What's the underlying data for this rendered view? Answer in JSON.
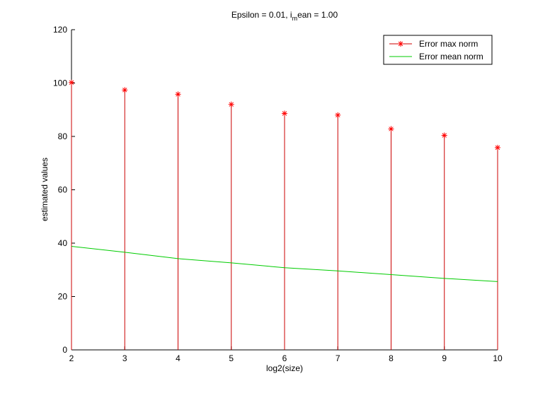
{
  "chart_data": {
    "type": "line",
    "title_parts": [
      "Epsilon = 0.01, i",
      "m",
      "ean = 1.00"
    ],
    "xlabel": "log2(size)",
    "ylabel": "estimated values",
    "xlim": [
      2,
      10
    ],
    "ylim": [
      0,
      120
    ],
    "xticks": [
      2,
      3,
      4,
      5,
      6,
      7,
      8,
      9,
      10
    ],
    "yticks": [
      0,
      20,
      40,
      60,
      80,
      100,
      120
    ],
    "x": [
      2,
      3,
      4,
      5,
      6,
      7,
      8,
      9,
      10
    ],
    "series": [
      {
        "name": "Error max norm",
        "style": "stem",
        "marker": "*",
        "color": "#ff0000",
        "line_color": "#cc0000",
        "values": [
          100.2,
          97.4,
          95.8,
          92.0,
          88.6,
          88.0,
          82.8,
          80.4,
          75.8
        ]
      },
      {
        "name": "Error mean norm",
        "style": "line",
        "color": "#00cc00",
        "values": [
          38.8,
          36.6,
          34.2,
          32.6,
          30.8,
          29.6,
          28.2,
          26.8,
          25.6
        ]
      }
    ],
    "legend_position": "top-right",
    "grid": false
  }
}
